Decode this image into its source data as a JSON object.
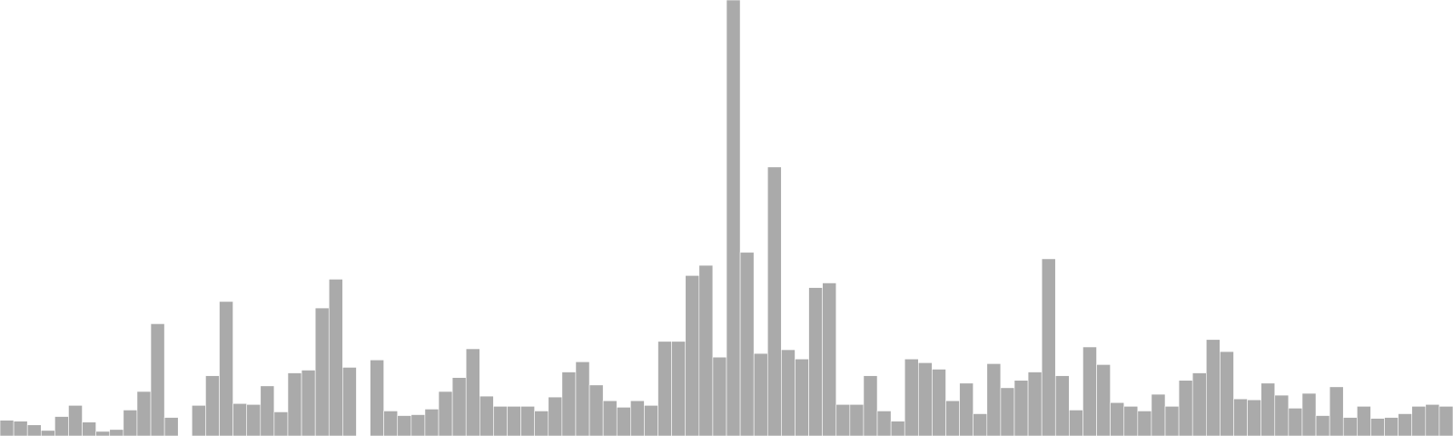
{
  "chart_data": {
    "type": "bar",
    "title": "",
    "xlabel": "",
    "ylabel": "",
    "ylim": [
      0,
      470
    ],
    "bar_color": "#aaaaaa",
    "bar_stroke_color": "#ffffff",
    "background_color": "#ffffff",
    "grid": false,
    "legend": "none",
    "values": [
      17,
      16,
      12,
      6,
      21,
      33,
      15,
      5,
      7,
      28,
      48,
      121,
      20,
      null,
      33,
      65,
      145,
      35,
      34,
      54,
      26,
      68,
      71,
      138,
      169,
      74,
      null,
      82,
      27,
      22,
      23,
      29,
      48,
      63,
      94,
      43,
      32,
      32,
      32,
      27,
      42,
      69,
      80,
      55,
      38,
      31,
      38,
      33,
      102,
      102,
      173,
      184,
      85,
      471,
      198,
      89,
      290,
      93,
      83,
      160,
      165,
      34,
      34,
      65,
      27,
      16,
      83,
      79,
      72,
      38,
      57,
      24,
      78,
      52,
      60,
      69,
      191,
      65,
      28,
      96,
      77,
      36,
      32,
      27,
      45,
      32,
      60,
      68,
      104,
      91,
      40,
      39,
      57,
      44,
      30,
      46,
      22,
      53,
      20,
      32,
      19,
      20,
      24,
      32,
      34,
      32
    ]
  }
}
